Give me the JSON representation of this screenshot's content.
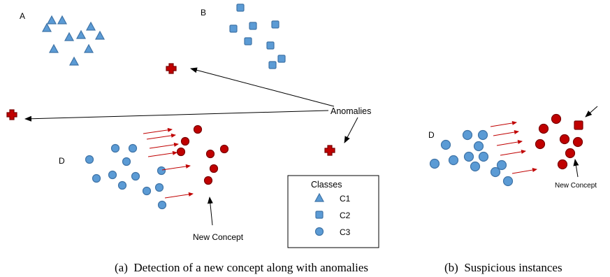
{
  "panel_a": {
    "cluster_labels": {
      "a": "A",
      "b": "B",
      "d": "D"
    },
    "anomalies_label": "Anomalies",
    "new_concept_label": "New Concept",
    "legend": {
      "title": "Classes",
      "items": [
        {
          "label": "C1",
          "shape": "triangle-icon"
        },
        {
          "label": "C2",
          "shape": "square-icon"
        },
        {
          "label": "C3",
          "shape": "circle-icon"
        }
      ]
    },
    "caption": "(a)  Detection of a new concept along with anomalies"
  },
  "panel_b": {
    "cluster_label_d": "D",
    "new_concept_label": "New Concept",
    "caption": "(b)  Suspicious instances"
  },
  "colors": {
    "known_class": "#5b9bd5",
    "novel_or_anomaly": "#c00000",
    "arrow": "#c00000"
  }
}
